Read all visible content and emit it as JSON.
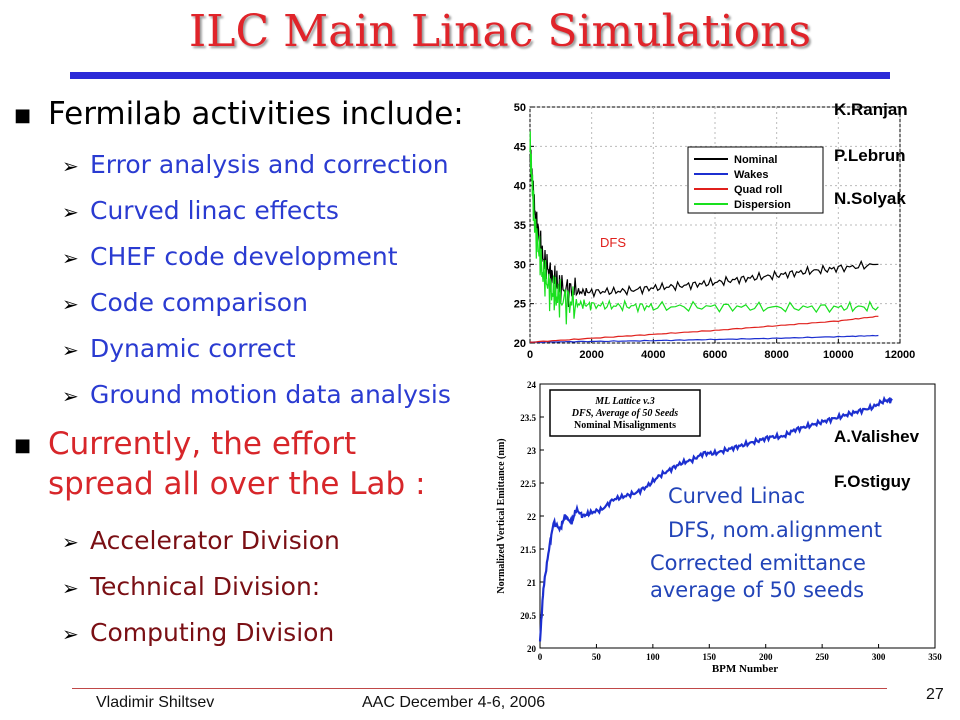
{
  "title": "ILC Main Linac Simulations",
  "bullets": [
    {
      "text": "Fermilab activities include:",
      "subs": [
        "Error analysis and correction",
        "Curved linac effects",
        "CHEF code development",
        "Code comparison",
        "Dynamic correct",
        "Ground motion data analysis"
      ]
    },
    {
      "line1": "Currently, the effort",
      "line2": "spread all over the Lab :",
      "subs": [
        "Accelerator Division",
        "Technical Division:",
        "Computing Division"
      ]
    }
  ],
  "authors_top": [
    "K.Ranjan",
    "P.Lebrun",
    "N.Solyak"
  ],
  "authors_bottom": [
    "A.Valishev",
    "F.Ostiguy"
  ],
  "notes": [
    "Curved Linac",
    "DFS, nom.alignment",
    "Corrected emittance",
    "average of 50 seeds"
  ],
  "footer": {
    "author": "Vladimir Shiltsev",
    "event": "AAC December 4-6, 2006",
    "page": "27"
  },
  "chart_data": [
    {
      "type": "line",
      "annotation": "DFS",
      "xlim": [
        0,
        12000
      ],
      "ylim": [
        20,
        50
      ],
      "xticks": [
        0,
        2000,
        4000,
        6000,
        8000,
        10000,
        12000
      ],
      "yticks": [
        20,
        25,
        30,
        35,
        40,
        45,
        50
      ],
      "grid": true,
      "legend_position": "top-right",
      "series": [
        {
          "name": "Nominal",
          "color": "#000000",
          "x": [
            0,
            150,
            400,
            700,
            1000,
            1500,
            2000,
            3000,
            4000,
            5000,
            6000,
            7000,
            8000,
            9000,
            10000,
            11300
          ],
          "y": [
            44,
            37,
            31,
            28.5,
            27,
            26.5,
            26.5,
            26.6,
            27,
            27.3,
            27.7,
            28.2,
            28.6,
            29.1,
            29.5,
            30
          ]
        },
        {
          "name": "Wakes",
          "color": "#1c2fd0",
          "x": [
            0,
            2000,
            4000,
            6000,
            8000,
            10000,
            11300
          ],
          "y": [
            20.1,
            20.2,
            20.3,
            20.45,
            20.6,
            20.8,
            20.95
          ]
        },
        {
          "name": "Quad roll",
          "color": "#e0201c",
          "x": [
            0,
            2000,
            4000,
            6000,
            8000,
            10000,
            11300
          ],
          "y": [
            20.1,
            20.6,
            21.1,
            21.6,
            22.2,
            22.8,
            23.4
          ]
        },
        {
          "name": "Dispersion",
          "color": "#19e01e",
          "x": [
            0,
            150,
            400,
            700,
            1000,
            1500,
            2000,
            3000,
            4000,
            6000,
            8000,
            10000,
            11300
          ],
          "y": [
            45,
            35,
            29,
            26.5,
            25.5,
            25,
            24.8,
            24.7,
            24.6,
            24.6,
            24.5,
            24.5,
            24.6
          ]
        }
      ]
    },
    {
      "type": "line",
      "xlabel": "BPM Number",
      "ylabel": "Normalized Vertical Emittance (nm)",
      "legend_box": [
        "ML Lattice v.3",
        "DFS, Average of 50 Seeds",
        "Nominal Misalignments"
      ],
      "xlim": [
        0,
        350
      ],
      "ylim": [
        20,
        24
      ],
      "xticks": [
        0,
        50,
        100,
        150,
        200,
        250,
        300,
        350
      ],
      "yticks": [
        20,
        20.5,
        21,
        21.5,
        22,
        22.5,
        23,
        23.5,
        24
      ],
      "series": [
        {
          "name": "",
          "color": "#1c2fd0",
          "x": [
            0,
            3,
            8,
            12,
            18,
            22,
            28,
            32,
            38,
            45,
            55,
            65,
            75,
            85,
            95,
            105,
            115,
            125,
            135,
            145,
            155,
            165,
            175,
            185,
            195,
            205,
            215,
            225,
            235,
            245,
            255,
            265,
            275,
            285,
            295,
            305,
            312
          ],
          "y": [
            20.1,
            20.9,
            21.5,
            21.9,
            21.8,
            22.0,
            21.9,
            22.1,
            22.0,
            22.05,
            22.1,
            22.25,
            22.3,
            22.35,
            22.45,
            22.6,
            22.7,
            22.8,
            22.85,
            22.95,
            22.95,
            23.0,
            23.05,
            23.1,
            23.15,
            23.2,
            23.2,
            23.3,
            23.35,
            23.4,
            23.45,
            23.5,
            23.55,
            23.6,
            23.65,
            23.75,
            23.75
          ]
        }
      ]
    }
  ]
}
